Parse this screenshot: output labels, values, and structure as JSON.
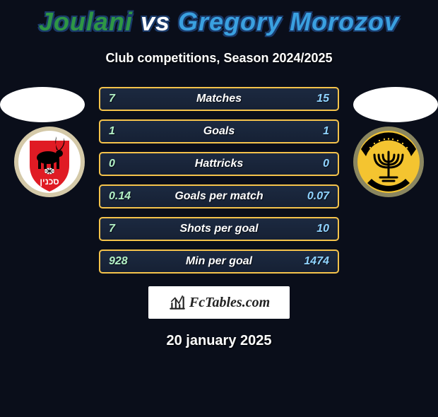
{
  "title": {
    "player1": "Joulani",
    "vs": "vs",
    "player2": "Gregory Morozov",
    "player1_color": "#2e9645",
    "player2_color": "#3aa0e0"
  },
  "subtitle": "Club competitions, Season 2024/2025",
  "rows": [
    {
      "left": "7",
      "label": "Matches",
      "right": "15"
    },
    {
      "left": "1",
      "label": "Goals",
      "right": "1"
    },
    {
      "left": "0",
      "label": "Hattricks",
      "right": "0"
    },
    {
      "left": "0.14",
      "label": "Goals per match",
      "right": "0.07"
    },
    {
      "left": "7",
      "label": "Shots per goal",
      "right": "10"
    },
    {
      "left": "928",
      "label": "Min per goal",
      "right": "1474"
    }
  ],
  "brand": "FcTables.com",
  "date": "20 january 2025",
  "style": {
    "row_border_color": "#f5c34b",
    "left_value_color": "#b2f0c5",
    "right_value_color": "#8fd3ff",
    "background_color": "#0a0e1a"
  },
  "badges": {
    "left": {
      "ring_color": "#d4c9a8",
      "bg_color": "#ffffff",
      "shield_color": "#e01b24",
      "figure_color": "#000000",
      "text": "סכנין"
    },
    "right": {
      "ring_color": "#8a8660",
      "bg_color": "#f4c430",
      "menorah_color": "#000000",
      "band_color": "#000000",
      "band_text_color": "#f4c430"
    }
  }
}
